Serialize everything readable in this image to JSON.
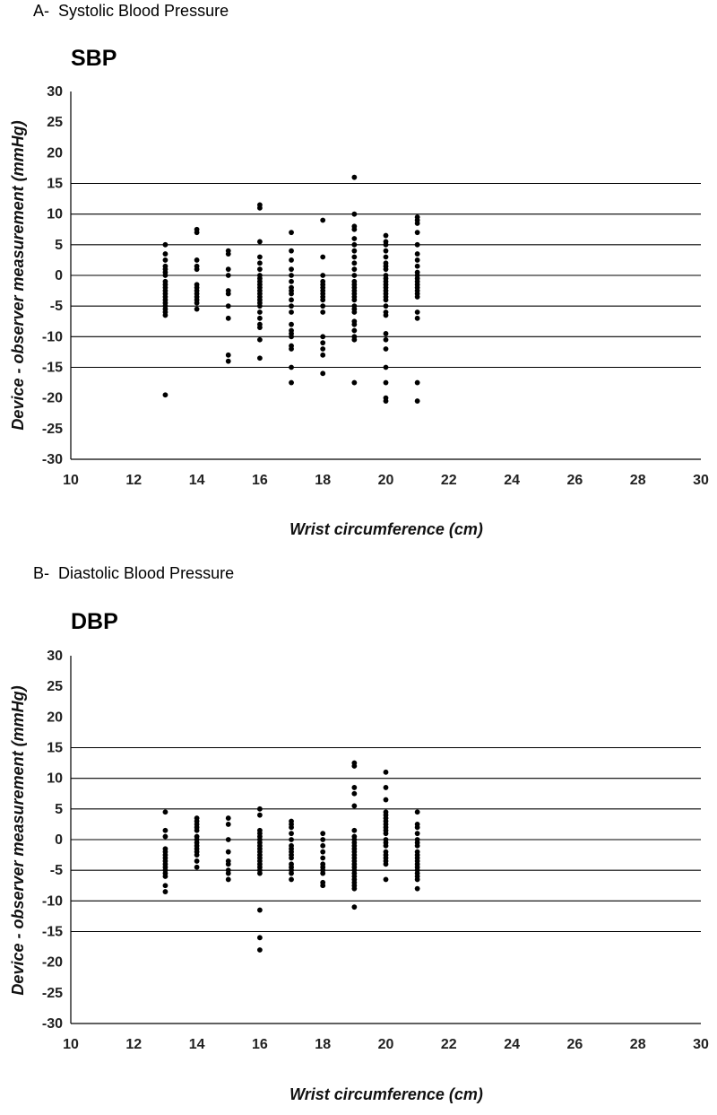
{
  "panels": [
    {
      "letter": "A-",
      "name": "Systolic Blood Pressure"
    },
    {
      "letter": "B-",
      "name": "Diastolic Blood Pressure"
    }
  ],
  "chart_data": [
    {
      "type": "scatter",
      "title": "SBP",
      "xlabel": "Wrist circumference (cm)",
      "ylabel": "Device - observer measurement (mmHg)",
      "xlim": [
        10,
        30
      ],
      "ylim": [
        -30,
        30
      ],
      "xticks": [
        10,
        12,
        14,
        16,
        18,
        20,
        22,
        24,
        26,
        28,
        30
      ],
      "yticks": [
        30,
        25,
        20,
        15,
        10,
        5,
        0,
        -5,
        -10,
        -15,
        -20,
        -25,
        -30
      ],
      "reference_lines": [
        15,
        10,
        5,
        0,
        -5,
        -10,
        -15
      ],
      "marker_color": "#000000",
      "points": [
        {
          "x": 13,
          "ys": [
            5,
            3.5,
            2.5,
            1.5,
            1,
            0.5,
            0,
            -1,
            -1.5,
            -2,
            -2.5,
            -3,
            -3.5,
            -4,
            -4.5,
            -5,
            -5.5,
            -6,
            -6.5,
            -19.5
          ]
        },
        {
          "x": 14,
          "ys": [
            7.5,
            7,
            2.5,
            1.5,
            1,
            -1.5,
            -2,
            -2.5,
            -3,
            -3.5,
            -4,
            -4.5,
            -5.5
          ]
        },
        {
          "x": 15,
          "ys": [
            4,
            3.5,
            1,
            0,
            -2.5,
            -3,
            -5,
            -7,
            -13,
            -14
          ]
        },
        {
          "x": 16,
          "ys": [
            11.5,
            11,
            5.5,
            3,
            2,
            1,
            0,
            -0.5,
            -1,
            -1.5,
            -2,
            -2.5,
            -3,
            -3.5,
            -4,
            -4.5,
            -5,
            -6,
            -7,
            -8,
            -8.5,
            -10.5,
            -13.5
          ]
        },
        {
          "x": 17,
          "ys": [
            7,
            4,
            2.5,
            1,
            0,
            -1,
            -2,
            -2.5,
            -3,
            -4,
            -5,
            -6,
            -8,
            -9,
            -9.5,
            -10,
            -11.5,
            -12,
            -15,
            -17.5
          ]
        },
        {
          "x": 18,
          "ys": [
            9,
            3,
            0,
            -1,
            -1.5,
            -2,
            -2.5,
            -3,
            -3.5,
            -4,
            -5,
            -6,
            -10,
            -11,
            -12,
            -13,
            -16
          ]
        },
        {
          "x": 19,
          "ys": [
            16,
            10,
            8,
            7.5,
            6,
            5,
            4,
            3,
            2,
            1,
            0,
            -1,
            -1.5,
            -2,
            -2.5,
            -3,
            -3.5,
            -4,
            -5,
            -5.5,
            -6,
            -7.5,
            -8,
            -9,
            -10,
            -10.5,
            -17.5
          ]
        },
        {
          "x": 20,
          "ys": [
            6.5,
            5.5,
            5,
            4,
            3,
            2,
            1.5,
            1,
            0,
            -0.5,
            -1,
            -1.5,
            -2,
            -2.5,
            -3,
            -3.5,
            -4,
            -5,
            -6,
            -6.5,
            -9.5,
            -10.5,
            -12,
            -15,
            -17.5,
            -20,
            -20.5
          ]
        },
        {
          "x": 21,
          "ys": [
            9.5,
            9,
            8.5,
            7,
            5,
            3.5,
            2.5,
            1.5,
            0.5,
            0,
            -0.5,
            -1,
            -1.5,
            -2,
            -2.5,
            -3,
            -3.5,
            -6,
            -7,
            -17.5,
            -20.5
          ]
        }
      ]
    },
    {
      "type": "scatter",
      "title": "DBP",
      "xlabel": "Wrist circumference (cm)",
      "ylabel": "Device - observer measurement (mmHg)",
      "xlim": [
        10,
        30
      ],
      "ylim": [
        -30,
        30
      ],
      "xticks": [
        10,
        12,
        14,
        16,
        18,
        20,
        22,
        24,
        26,
        28,
        30
      ],
      "yticks": [
        30,
        25,
        20,
        15,
        10,
        5,
        0,
        -5,
        -10,
        -15,
        -20,
        -25,
        -30
      ],
      "reference_lines": [
        15,
        10,
        5,
        0,
        -5,
        -10,
        -15
      ],
      "marker_color": "#000000",
      "points": [
        {
          "x": 13,
          "ys": [
            4.5,
            1.5,
            0.5,
            -1.5,
            -2,
            -2.5,
            -3,
            -3.5,
            -4,
            -4.5,
            -5,
            -5.5,
            -6,
            -7.5,
            -8.5
          ]
        },
        {
          "x": 14,
          "ys": [
            3.5,
            3,
            2.5,
            2,
            1.5,
            0.5,
            0,
            -0.5,
            -1,
            -1.5,
            -2,
            -2.5,
            -3.5,
            -4.5
          ]
        },
        {
          "x": 15,
          "ys": [
            3.5,
            2.5,
            0,
            -2,
            -3.5,
            -4,
            -5,
            -5.5,
            -6.5
          ]
        },
        {
          "x": 16,
          "ys": [
            5,
            4,
            1.5,
            1,
            0.5,
            0,
            -0.5,
            -1,
            -1.5,
            -2,
            -2.5,
            -3,
            -3.5,
            -4,
            -4.5,
            -5,
            -5.5,
            -11.5,
            -16,
            -18
          ]
        },
        {
          "x": 17,
          "ys": [
            3,
            2.5,
            2,
            1,
            0,
            -1,
            -1.5,
            -2,
            -2.5,
            -3,
            -4,
            -4.5,
            -5,
            -5.5,
            -6.5
          ]
        },
        {
          "x": 18,
          "ys": [
            1,
            0,
            -1,
            -2,
            -3,
            -4,
            -4.5,
            -5,
            -5.5,
            -7,
            -7.5
          ]
        },
        {
          "x": 19,
          "ys": [
            12.5,
            12,
            8.5,
            7.5,
            5.5,
            1.5,
            0.5,
            0,
            -0.5,
            -1,
            -1.5,
            -2,
            -2.5,
            -3,
            -3.5,
            -4,
            -4.5,
            -5,
            -5.5,
            -6,
            -6.5,
            -7,
            -7.5,
            -8,
            -11
          ]
        },
        {
          "x": 20,
          "ys": [
            11,
            8.5,
            6.5,
            4.5,
            4,
            3.5,
            3,
            2.5,
            2,
            1.5,
            1,
            0,
            -0.5,
            -1,
            -2,
            -2.5,
            -3,
            -3.5,
            -4,
            -6.5
          ]
        },
        {
          "x": 21,
          "ys": [
            4.5,
            2.5,
            2,
            1,
            0,
            -0.5,
            -1,
            -2,
            -2.5,
            -3,
            -3.5,
            -4,
            -4.5,
            -5,
            -5.5,
            -6,
            -6.5,
            -8
          ]
        }
      ]
    }
  ]
}
